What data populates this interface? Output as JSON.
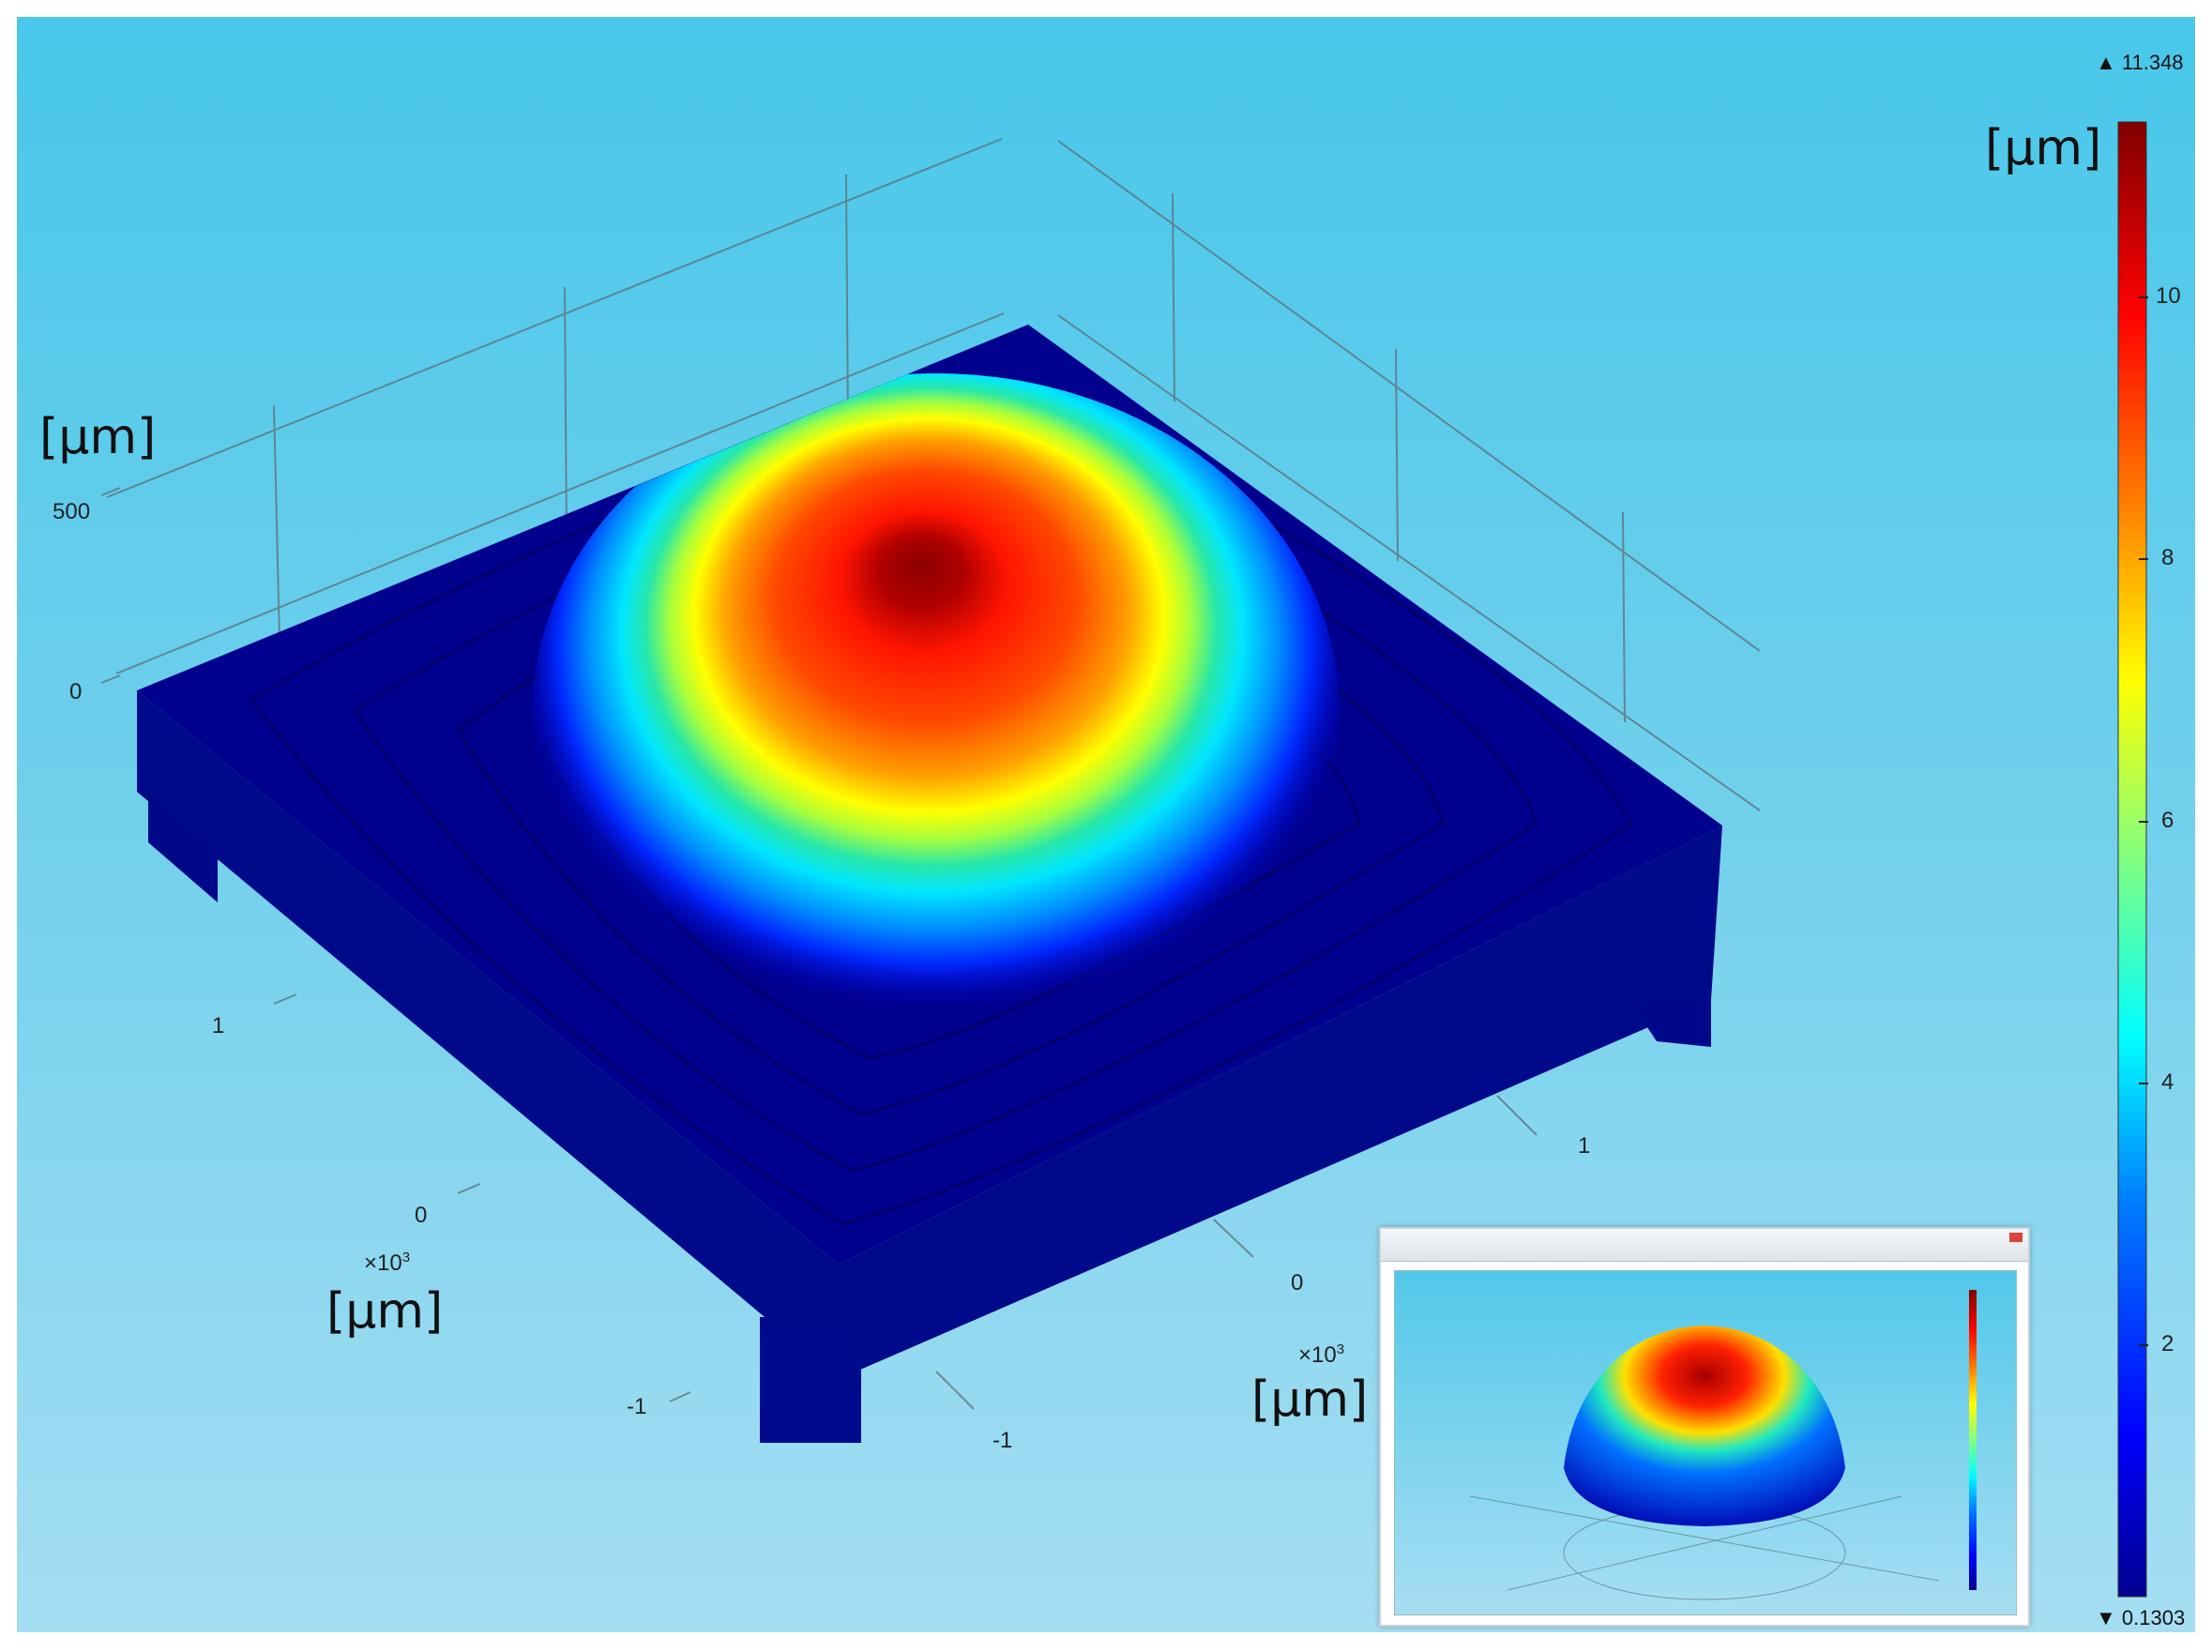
{
  "chart_data": {
    "type": "surface-3d",
    "colorbar": {
      "unit_label": "[µm]",
      "max_label": "▲ 11.348",
      "min_label": "▼ 0.1303",
      "min": 0.1303,
      "max": 11.348,
      "ticks": [
        {
          "value": 10,
          "label": "10"
        },
        {
          "value": 8,
          "label": "8"
        },
        {
          "value": 6,
          "label": "6"
        },
        {
          "value": 4,
          "label": "4"
        },
        {
          "value": 2,
          "label": "2"
        }
      ],
      "colormap": [
        "#00008f",
        "#0000ff",
        "#0080ff",
        "#00ffff",
        "#80ff80",
        "#ffff00",
        "#ff8000",
        "#ff0000",
        "#800000"
      ]
    },
    "axes": {
      "z": {
        "unit_label": "[µm]",
        "ticks": [
          "500",
          "0"
        ]
      },
      "y": {
        "unit_label": "[µm]",
        "multiplier_base": "×10",
        "multiplier_exp": "3",
        "ticks": [
          "1",
          "0",
          "-1"
        ]
      },
      "x": {
        "unit_label": "[µm]",
        "multiplier_base": "×10",
        "multiplier_exp": "3",
        "ticks": [
          "1",
          "0",
          "-1"
        ]
      }
    },
    "surface": {
      "peak_value": 11.348,
      "base_value": 0.1303,
      "base_color": "#00008f"
    },
    "inset": {
      "present": true,
      "description_shape": "dome"
    }
  }
}
